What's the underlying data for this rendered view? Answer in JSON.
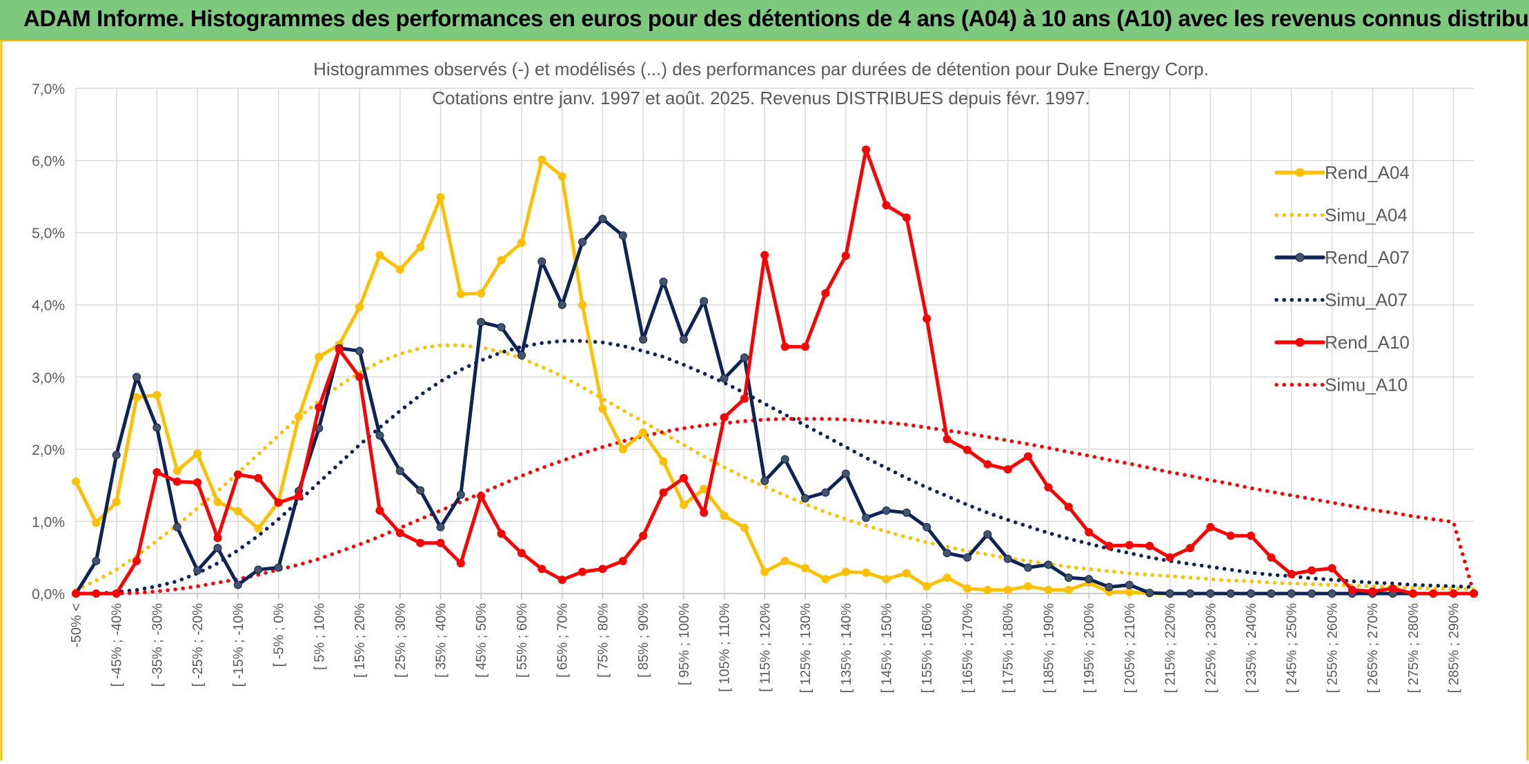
{
  "header": {
    "title": "ADAM Informe. Histogrammes des performances en euros pour des détentions de 4 ans (A04) à 10 ans (A10) avec les revenus connus distribués"
  },
  "chart_data": {
    "type": "line",
    "title": "Histogrammes observés (-) et modélisés (...) des performances par durées de détention pour Duke Energy Corp.",
    "subtitle": "Cotations entre janv. 1997 et août. 2025. Revenus DISTRIBUES depuis févr. 1997.",
    "xlabel": "",
    "ylabel": "",
    "ylim": [
      0,
      7
    ],
    "yticks": [
      "0,0%",
      "1,0%",
      "2,0%",
      "3,0%",
      "4,0%",
      "5,0%",
      "6,0%",
      "7,0%"
    ],
    "grid": true,
    "legend_position": "right",
    "tick_labels": [
      "-50% <",
      "[ -45% ; -40%",
      "[ -35% ; -30%",
      "[ -25% ; -20%",
      "[ -15% ; -10%",
      "[ -5% ; 0%",
      "[ 5% ; 10%",
      "[ 15% ; 20%",
      "[ 25% ; 30%",
      "[ 35% ; 40%",
      "[ 45% ; 50%",
      "[ 55% ; 60%",
      "[ 65% ; 70%",
      "[ 75% ; 80%",
      "[ 85% ; 90%",
      "[ 95% ; 100%",
      "[ 105% ; 110%",
      "[ 115% ; 120%",
      "[ 125% ; 130%",
      "[ 135% ; 140%",
      "[ 145% ; 150%",
      "[ 155% ; 160%",
      "[ 165% ; 170%",
      "[ 175% ; 180%",
      "[ 185% ; 190%",
      "[ 195% ; 200%",
      "[ 205% ; 210%",
      "[ 215% ; 220%",
      "[ 225% ; 230%",
      "[ 235% ; 240%",
      "[ 245% ; 250%",
      "[ 255% ; 260%",
      "[ 265% ; 270%",
      "[ 275% ; 280%",
      "[ 285% ; 290%"
    ],
    "series": [
      {
        "name": "Rend_A04",
        "color": "#FFC000",
        "style": "solid",
        "values": [
          1.55,
          0.98,
          1.27,
          2.72,
          2.75,
          1.7,
          1.94,
          1.27,
          1.14,
          0.9,
          1.27,
          2.45,
          3.28,
          3.45,
          3.97,
          4.69,
          4.49,
          4.8,
          5.49,
          4.15,
          4.16,
          4.62,
          4.86,
          6.01,
          5.78,
          4.0,
          2.56,
          2.0,
          2.23,
          1.83,
          1.23,
          1.45,
          1.08,
          0.91,
          0.3,
          0.45,
          0.35,
          0.2,
          0.3,
          0.29,
          0.2,
          0.28,
          0.1,
          0.22,
          0.07,
          0.05,
          0.05,
          0.1,
          0.05,
          0.05,
          0.15,
          0.02,
          0.02,
          0,
          0,
          0,
          0,
          0,
          0,
          0,
          0,
          0,
          0,
          0,
          0,
          0,
          0,
          0,
          0,
          0
        ]
      },
      {
        "name": "Simu_A04",
        "color": "#FFC000",
        "style": "dotted",
        "values": [
          0.05,
          0.18,
          0.33,
          0.52,
          0.73,
          0.95,
          1.18,
          1.42,
          1.67,
          1.93,
          2.19,
          2.44,
          2.67,
          2.88,
          3.06,
          3.21,
          3.32,
          3.4,
          3.44,
          3.44,
          3.41,
          3.35,
          3.26,
          3.14,
          3.01,
          2.86,
          2.7,
          2.54,
          2.38,
          2.22,
          2.06,
          1.9,
          1.75,
          1.61,
          1.48,
          1.36,
          1.24,
          1.13,
          1.03,
          0.94,
          0.86,
          0.78,
          0.71,
          0.65,
          0.59,
          0.54,
          0.49,
          0.45,
          0.41,
          0.37,
          0.34,
          0.31,
          0.28,
          0.26,
          0.24,
          0.22,
          0.2,
          0.18,
          0.17,
          0.15,
          0.14,
          0.13,
          0.12,
          0.11,
          0.1,
          0.09,
          0.08,
          0.07,
          0.07,
          0.06
        ]
      },
      {
        "name": "Rend_A07",
        "color": "#0E2457",
        "style": "solid",
        "values": [
          0,
          0.45,
          1.92,
          3.0,
          2.3,
          0.92,
          0.32,
          0.63,
          0.12,
          0.33,
          0.36,
          1.42,
          2.29,
          3.4,
          3.36,
          2.19,
          1.7,
          1.43,
          0.92,
          1.37,
          3.76,
          3.69,
          3.3,
          4.6,
          4.0,
          4.87,
          5.19,
          4.96,
          3.52,
          4.32,
          3.52,
          4.05,
          2.98,
          3.27,
          1.56,
          1.86,
          1.32,
          1.4,
          1.66,
          1.05,
          1.15,
          1.12,
          0.92,
          0.56,
          0.5,
          0.82,
          0.48,
          0.36,
          0.4,
          0.22,
          0.2,
          0.09,
          0.12,
          0.01,
          0,
          0,
          0,
          0,
          0,
          0,
          0,
          0,
          0,
          0,
          0,
          0,
          0,
          0,
          0,
          0
        ]
      },
      {
        "name": "Simu_A07",
        "color": "#0E2457",
        "style": "dotted",
        "values": [
          0,
          0,
          0.02,
          0.05,
          0.1,
          0.17,
          0.28,
          0.42,
          0.6,
          0.8,
          1.03,
          1.28,
          1.54,
          1.8,
          2.06,
          2.3,
          2.53,
          2.75,
          2.94,
          3.1,
          3.23,
          3.34,
          3.42,
          3.47,
          3.5,
          3.5,
          3.48,
          3.43,
          3.36,
          3.28,
          3.17,
          3.05,
          2.92,
          2.78,
          2.63,
          2.48,
          2.33,
          2.18,
          2.03,
          1.88,
          1.74,
          1.6,
          1.47,
          1.35,
          1.23,
          1.12,
          1.02,
          0.93,
          0.84,
          0.76,
          0.69,
          0.62,
          0.56,
          0.5,
          0.45,
          0.41,
          0.37,
          0.33,
          0.29,
          0.26,
          0.24,
          0.21,
          0.19,
          0.17,
          0.15,
          0.14,
          0.12,
          0.11,
          0.1,
          0.09
        ]
      },
      {
        "name": "Rend_A10",
        "color": "#FF0000",
        "style": "solid",
        "values": [
          0,
          0,
          0,
          0.45,
          1.68,
          1.55,
          1.54,
          0.77,
          1.65,
          1.6,
          1.26,
          1.35,
          2.58,
          3.38,
          3.0,
          1.15,
          0.84,
          0.7,
          0.7,
          0.42,
          1.35,
          0.83,
          0.56,
          0.34,
          0.19,
          0.3,
          0.34,
          0.45,
          0.8,
          1.4,
          1.6,
          1.12,
          2.44,
          2.7,
          4.69,
          3.42,
          3.42,
          4.16,
          4.68,
          6.15,
          5.38,
          5.21,
          3.81,
          2.14,
          1.99,
          1.79,
          1.72,
          1.9,
          1.47,
          1.2,
          0.85,
          0.66,
          0.67,
          0.66,
          0.5,
          0.63,
          0.92,
          0.8,
          0.8,
          0.5,
          0.27,
          0.32,
          0.35,
          0.05,
          0.03,
          0.07,
          0,
          0,
          0,
          0
        ]
      },
      {
        "name": "Simu_A10",
        "color": "#FF0000",
        "style": "dotted",
        "values": [
          0,
          0,
          0,
          0.01,
          0.03,
          0.06,
          0.1,
          0.15,
          0.2,
          0.26,
          0.33,
          0.4,
          0.48,
          0.58,
          0.68,
          0.79,
          0.91,
          1.03,
          1.15,
          1.27,
          1.39,
          1.51,
          1.63,
          1.74,
          1.84,
          1.94,
          2.03,
          2.11,
          2.18,
          2.24,
          2.29,
          2.33,
          2.36,
          2.39,
          2.41,
          2.42,
          2.42,
          2.42,
          2.41,
          2.39,
          2.37,
          2.34,
          2.3,
          2.26,
          2.22,
          2.17,
          2.12,
          2.07,
          2.02,
          1.96,
          1.91,
          1.85,
          1.8,
          1.74,
          1.68,
          1.63,
          1.57,
          1.52,
          1.46,
          1.41,
          1.36,
          1.31,
          1.26,
          1.21,
          1.16,
          1.12,
          1.07,
          1.03,
          0.99,
          0
        ]
      }
    ]
  }
}
